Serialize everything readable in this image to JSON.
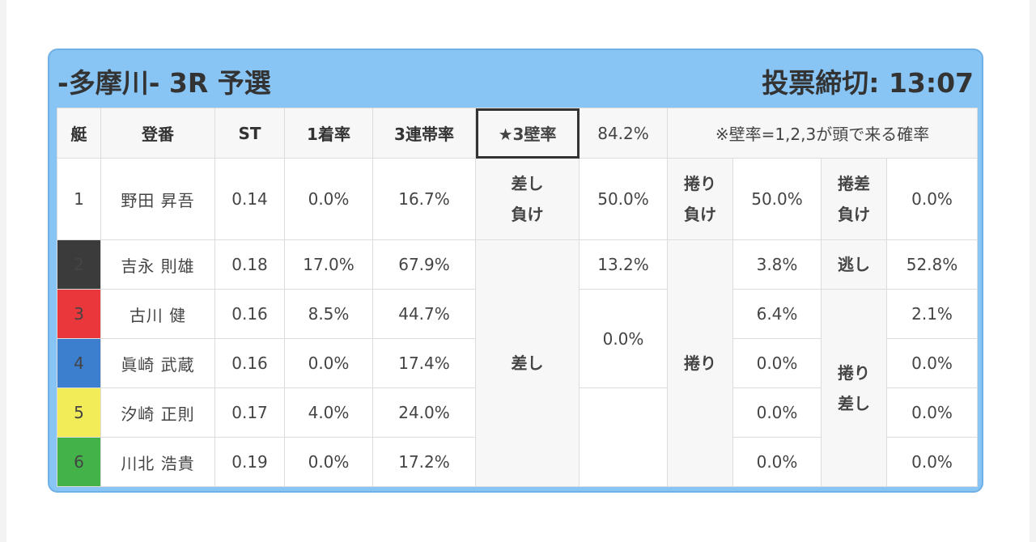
{
  "race": {
    "title": "-多摩川- 3R 予選",
    "deadline": "投票締切: 13:07"
  },
  "headers": {
    "boat": "艇",
    "reg": "登番",
    "st": "ST",
    "win": "1着率",
    "top3": "3連帯率",
    "star": "★3壁率",
    "star_value": "84.2%",
    "note": "※壁率=1,2,3が頭で来る確率"
  },
  "rows": [
    {
      "num": "1",
      "name": "野田 昇吾",
      "st": "0.14",
      "win": "0.0%",
      "top3": "16.7%"
    },
    {
      "num": "2",
      "name": "吉永 則雄",
      "st": "0.18",
      "win": "17.0%",
      "top3": "67.9%"
    },
    {
      "num": "3",
      "name": "古川 健",
      "st": "0.16",
      "win": "8.5%",
      "top3": "44.7%"
    },
    {
      "num": "4",
      "name": "眞崎 武蔵",
      "st": "0.16",
      "win": "0.0%",
      "top3": "17.4%"
    },
    {
      "num": "5",
      "name": "汐崎 正則",
      "st": "0.17",
      "win": "4.0%",
      "top3": "24.0%"
    },
    {
      "num": "6",
      "name": "川北 浩貴",
      "st": "0.19",
      "win": "0.0%",
      "top3": "17.2%"
    }
  ],
  "row1_labels": {
    "sashi_make_1": "差し",
    "sashi_make_2": "負け",
    "sashi_make_val": "50.0%",
    "makuri_make_1": "捲り",
    "makuri_make_2": "負け",
    "makuri_make_val": "50.0%",
    "makusashi_make_1": "捲差",
    "makusashi_make_2": "負け",
    "makusashi_make_val": "0.0%"
  },
  "kimarite": {
    "sashi": "差し",
    "makuri": "捲り",
    "nige": "逃し",
    "makurisashi_1": "捲り",
    "makurisashi_2": "差し"
  },
  "kimarite_values": {
    "sashi_r2": "13.2%",
    "sashi_r4": "0.0%",
    "makuri_r2": "3.8%",
    "makuri_r3": "6.4%",
    "makuri_r4": "0.0%",
    "makuri_r5": "0.0%",
    "makuri_r6": "0.0%",
    "nige_r2": "52.8%",
    "ms_r3": "2.1%",
    "ms_r4": "0.0%",
    "ms_r5": "0.0%",
    "ms_r6": "0.0%"
  },
  "colors": {
    "card": "#88c4f4",
    "star": "#f0a820",
    "boat2": "#3b3b3b",
    "boat3": "#e9373c",
    "boat4": "#3d7fcf",
    "boat5": "#f1ec58",
    "boat6": "#43b249"
  }
}
